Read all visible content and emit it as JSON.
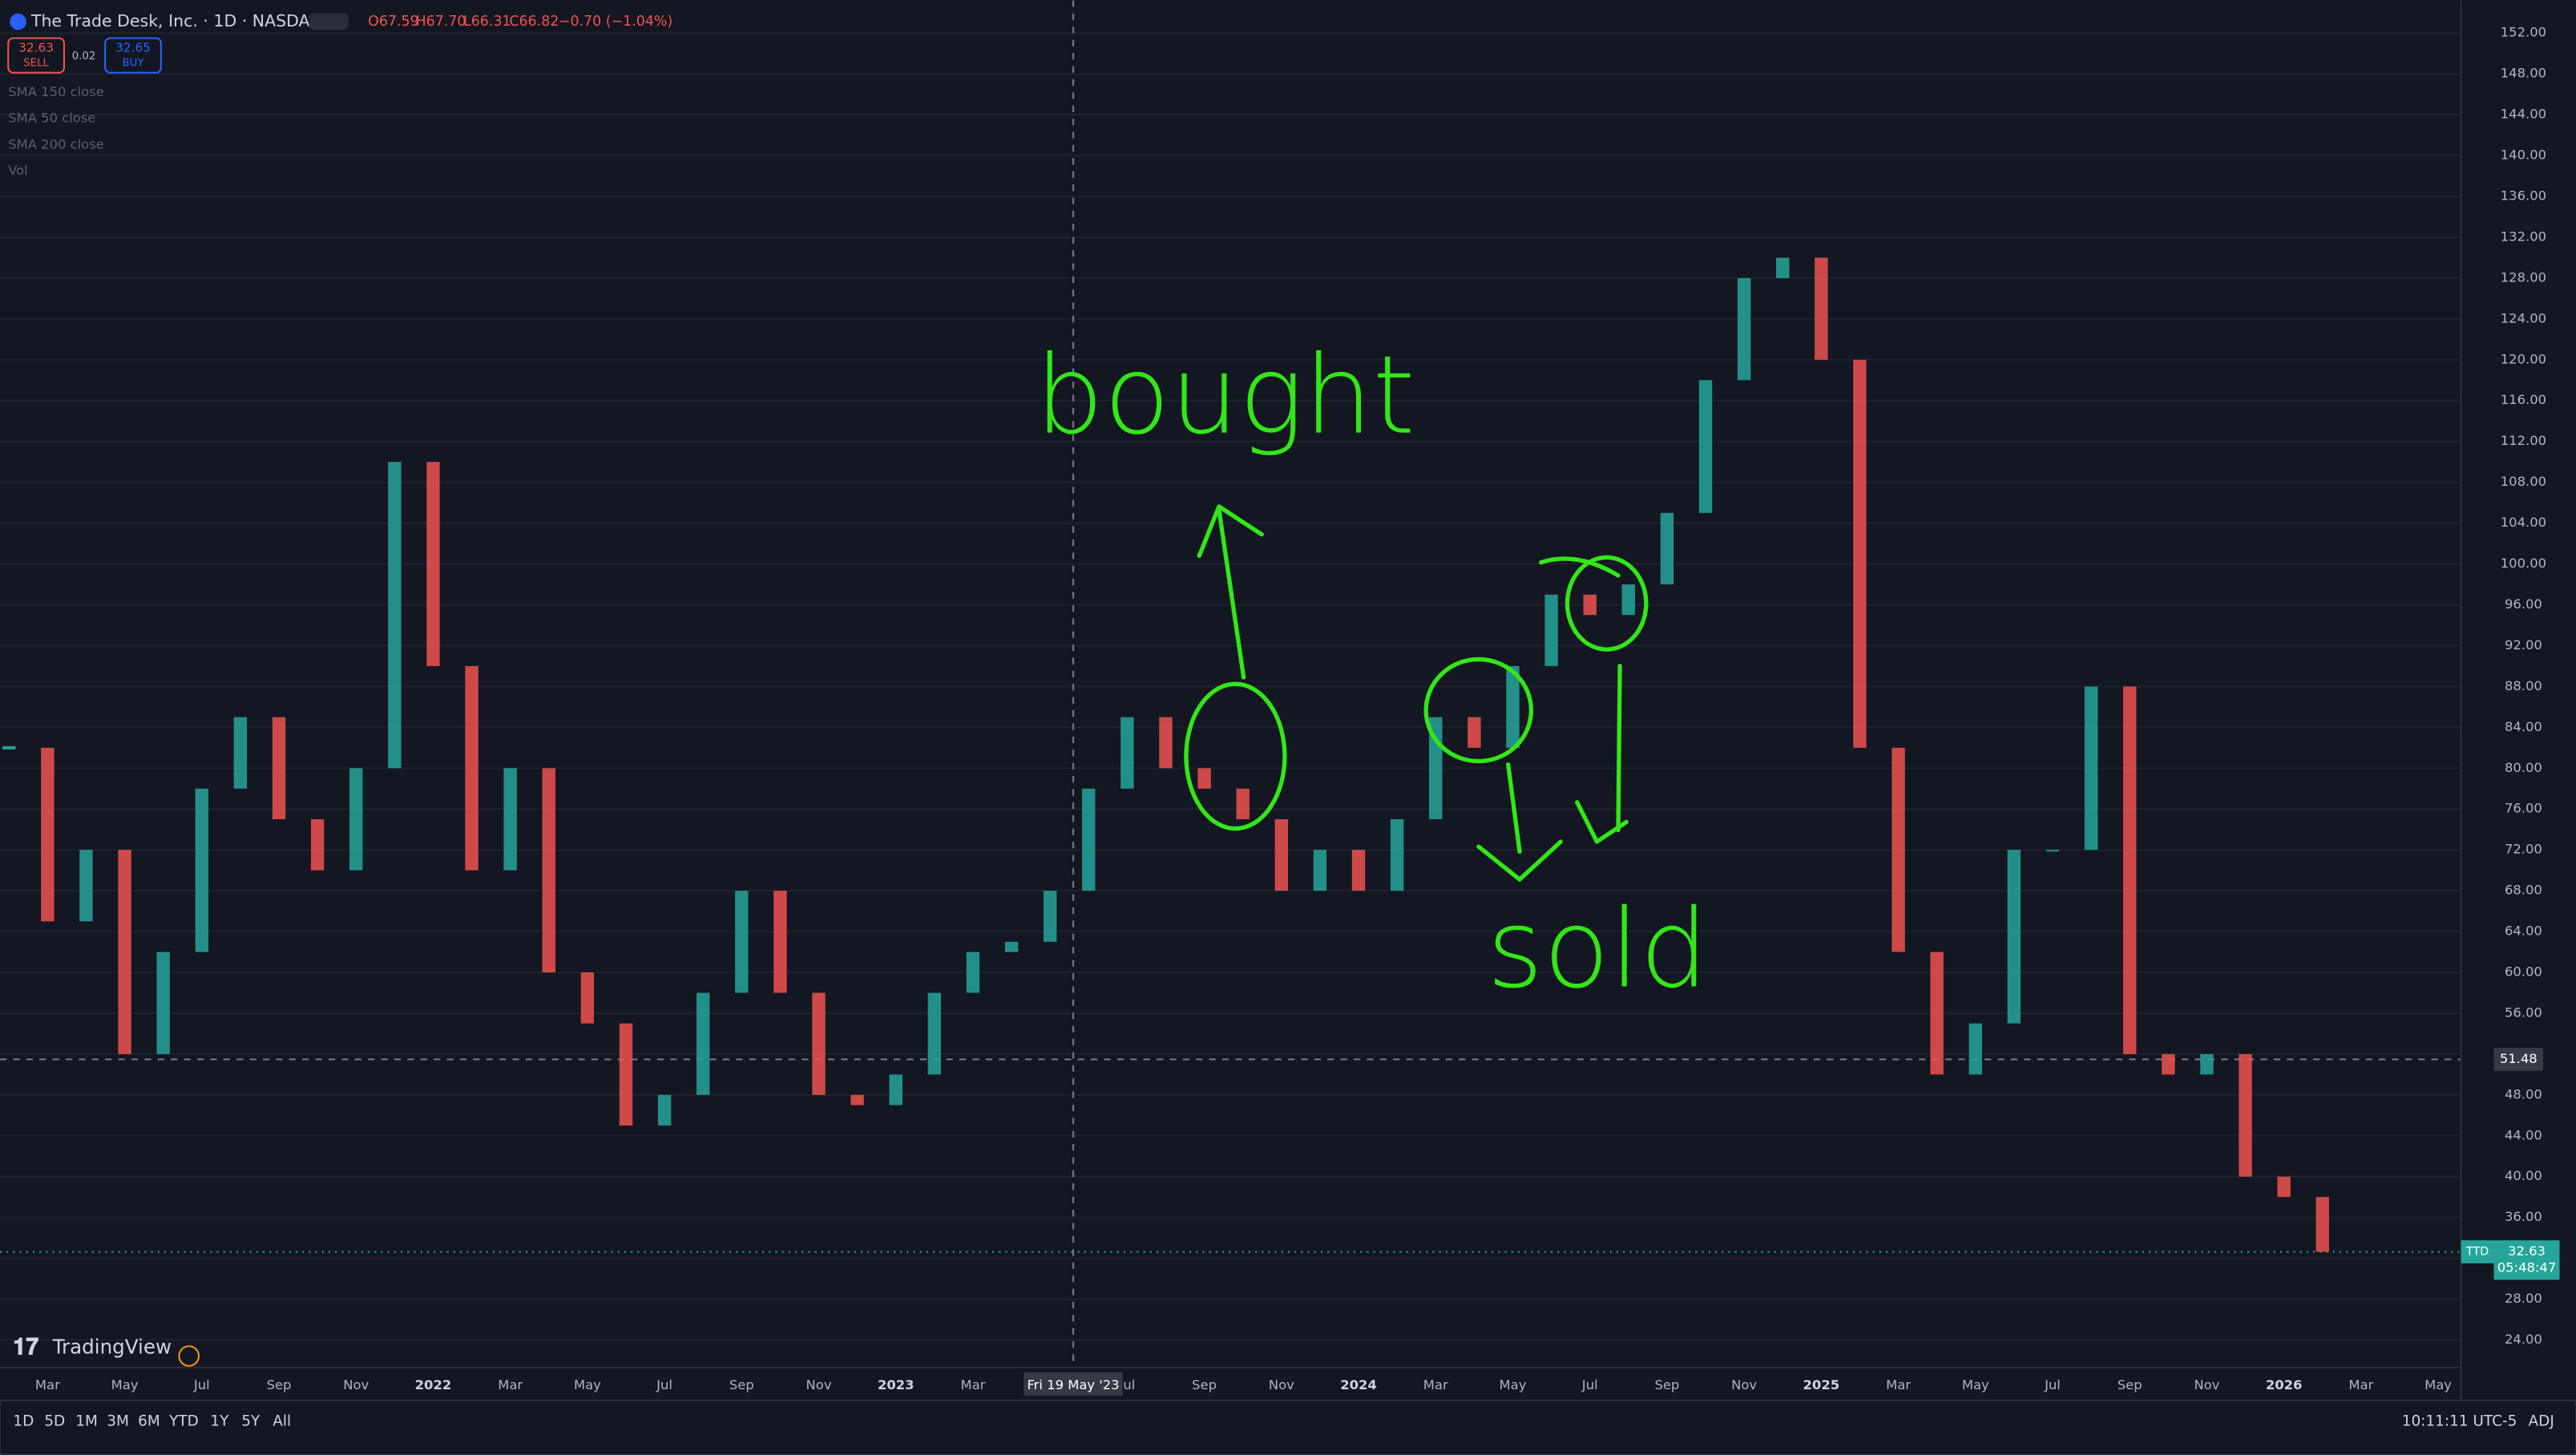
{
  "header": {
    "symbol": "The Trade Desk, Inc. · 1D · NASDAQ",
    "open": "O67.59",
    "high": "H67.70",
    "low": "L66.31",
    "close": "C66.82",
    "change": "−0.70 (−1.04%)",
    "sell_price": "32.63",
    "sell": "SELL",
    "spread": "0.02",
    "buy_price": "32.65",
    "buy": "BUY",
    "indicators": [
      "SMA 150 close",
      "SMA 50 close",
      "SMA 200 close",
      "Vol"
    ]
  },
  "chart_data": {
    "type": "candlestick",
    "categories": [
      null,
      "Mar",
      null,
      "May",
      null,
      "Jul",
      null,
      "Sep",
      null,
      "Nov",
      null,
      "2022",
      null,
      "Mar",
      null,
      "May",
      null,
      "Jul",
      null,
      "Sep",
      null,
      "Nov",
      null,
      "2023",
      null,
      "Mar",
      null,
      null,
      null,
      "Jul",
      null,
      "Sep",
      null,
      "Nov",
      null,
      "2024",
      null,
      "Mar",
      null,
      "May",
      null,
      "Jul",
      null,
      "Sep",
      null,
      "Nov",
      null,
      "2025",
      null,
      "Mar",
      null,
      "May",
      null,
      "Jul",
      null,
      "Sep",
      null,
      "Nov",
      null,
      "2026",
      null,
      "Mar",
      null,
      "May"
    ],
    "values": [
      82,
      65,
      72,
      52,
      62,
      78,
      85,
      75,
      70,
      80,
      110,
      90,
      70,
      80,
      60,
      55,
      45,
      48,
      58,
      68,
      58,
      48,
      47,
      50,
      58,
      62,
      63,
      68,
      78,
      85,
      80,
      78,
      75,
      68,
      72,
      68,
      75,
      85,
      82,
      90,
      97,
      95,
      98,
      105,
      118,
      128,
      130,
      120,
      82,
      62,
      50,
      55,
      72,
      72,
      88,
      52,
      50,
      52,
      40,
      38,
      32.63,
      null,
      null,
      null
    ],
    "up_color": "#26a69a",
    "down_color": "#ef5350",
    "ylim": [
      21.3,
      155.2
    ],
    "yticks": [
      {
        "value": 24,
        "label": "24.00"
      },
      {
        "value": 28,
        "label": "28.00"
      },
      {
        "value": 32,
        "label": "32.00"
      },
      {
        "value": 36,
        "label": "36.00"
      },
      {
        "value": 40,
        "label": "40.00"
      },
      {
        "value": 44,
        "label": "44.00"
      },
      {
        "value": 48,
        "label": "48.00"
      },
      {
        "value": 52,
        "label": "52.00"
      },
      {
        "value": 56,
        "label": "56.00"
      },
      {
        "value": 60,
        "label": "60.00"
      },
      {
        "value": 64,
        "label": "64.00"
      },
      {
        "value": 68,
        "label": "68.00"
      },
      {
        "value": 72,
        "label": "72.00"
      },
      {
        "value": 76,
        "label": "76.00"
      },
      {
        "value": 80,
        "label": "80.00"
      },
      {
        "value": 84,
        "label": "84.00"
      },
      {
        "value": 88,
        "label": "88.00"
      },
      {
        "value": 92,
        "label": "92.00"
      },
      {
        "value": 96,
        "label": "96.00"
      },
      {
        "value": 100,
        "label": "100.00"
      },
      {
        "value": 104,
        "label": "104.00"
      },
      {
        "value": 108,
        "label": "108.00"
      },
      {
        "value": 112,
        "label": "112.00"
      },
      {
        "value": 116,
        "label": "116.00"
      },
      {
        "value": 120,
        "label": "120.00"
      },
      {
        "value": 124,
        "label": "124.00"
      },
      {
        "value": 128,
        "label": "128.00"
      },
      {
        "value": 132,
        "label": "132.00"
      },
      {
        "value": 136,
        "label": "136.00"
      },
      {
        "value": 140,
        "label": "140.00"
      },
      {
        "value": 144,
        "label": "144.00"
      },
      {
        "value": 148,
        "label": "148.00"
      },
      {
        "value": 152,
        "label": "152.00"
      }
    ],
    "grid": true,
    "crosshair": {
      "value": 51.48,
      "date_label": "Fri 19 May '23"
    },
    "last_price": {
      "ticker": "TTD",
      "value": 32.63,
      "countdown": "05:48:47"
    },
    "annotations": [
      "bought",
      "sold"
    ]
  },
  "footer": {
    "brand": "TradingView",
    "ranges": [
      "1D",
      "5D",
      "1M",
      "3M",
      "6M",
      "YTD",
      "1Y",
      "5Y",
      "All"
    ],
    "clock": "10:11:11 UTC-5",
    "adj": "ADJ"
  }
}
